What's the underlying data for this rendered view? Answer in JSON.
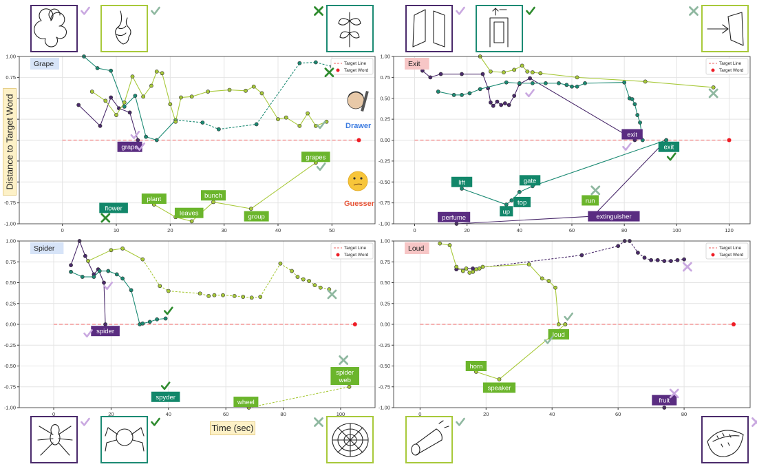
{
  "figure": {
    "ylabel": "Distance to Target Word",
    "xlabel": "Time (sec)",
    "roles": {
      "drawer": "Drawer",
      "guesser": "Guesser"
    },
    "colors": {
      "dark_purple": "#4a2a6b",
      "teal": "#1b8a73",
      "lime": "#a8c93a",
      "label_purple": "#5a2d81",
      "label_teal": "#12876a",
      "label_green": "#6bb52c",
      "target_line": "#f08080",
      "target_word": "#ee1c25",
      "check_dark": "#2e8b2e",
      "check_light": "#8fb8a0",
      "mark_purple_light": "#c9a8e0",
      "drawer_blue": "#3b7be0",
      "guesser_red": "#e8583c"
    }
  },
  "chart_data": [
    {
      "type": "line",
      "title": "Grape",
      "xlim": [
        -8,
        58
      ],
      "ylim": [
        -1.0,
        1.0
      ],
      "xticks": [
        0,
        10,
        20,
        30,
        40,
        50
      ],
      "yticks": [
        1.0,
        0.75,
        0.5,
        0.25,
        0.0,
        -0.25,
        -0.5,
        -0.75,
        -1.0
      ],
      "legend": [
        "Target Line",
        "Target Word"
      ],
      "target_word_x": 55,
      "series": [
        {
          "color": "dark_purple",
          "dashed_after": null,
          "x": [
            3,
            7,
            9,
            10.5,
            12.5,
            14
          ],
          "y": [
            0.42,
            0.17,
            0.51,
            0.38,
            0.33,
            0.0
          ]
        },
        {
          "color": "teal",
          "dashed_after": 7,
          "x": [
            4,
            6.5,
            9,
            11.5,
            13.5,
            15.5,
            17.5,
            21,
            26,
            29,
            36,
            44,
            47,
            50
          ],
          "y": [
            1.0,
            0.86,
            0.83,
            0.4,
            0.53,
            0.04,
            0.0,
            0.24,
            0.21,
            0.13,
            0.19,
            0.92,
            0.93,
            0.88
          ]
        },
        {
          "color": "lime",
          "dashed_after": null,
          "x": [
            5.5,
            8,
            10,
            11.5,
            13,
            15,
            16.5,
            17.5,
            18.5,
            20,
            21,
            22,
            24,
            27,
            31,
            34,
            35.5,
            37,
            40,
            41.5,
            44,
            45.5,
            47,
            49
          ],
          "y": [
            0.58,
            0.47,
            0.3,
            0.45,
            0.76,
            0.52,
            0.65,
            0.82,
            0.8,
            0.43,
            0.22,
            0.51,
            0.52,
            0.58,
            0.6,
            0.59,
            0.64,
            0.56,
            0.25,
            0.27,
            0.17,
            0.32,
            0.17,
            0.22
          ]
        },
        {
          "color": "lime",
          "dashed_after": null,
          "x": [
            17,
            21,
            24,
            28,
            35,
            47
          ],
          "y": [
            -0.77,
            -0.92,
            -0.97,
            -0.74,
            -0.82,
            -0.27
          ]
        }
      ],
      "annotations": [
        {
          "text": "grape",
          "x": 12.5,
          "y": -0.08,
          "color": "label_purple"
        },
        {
          "text": "flower",
          "x": 9.5,
          "y": -0.81,
          "color": "label_teal"
        },
        {
          "text": "plant",
          "x": 17,
          "y": -0.7,
          "color": "label_green"
        },
        {
          "text": "leaves",
          "x": 23.5,
          "y": -0.87,
          "color": "label_green"
        },
        {
          "text": "bunch",
          "x": 28,
          "y": -0.66,
          "color": "label_green"
        },
        {
          "text": "group",
          "x": 36,
          "y": -0.91,
          "color": "label_green"
        },
        {
          "text": "grapes",
          "x": 47,
          "y": -0.2,
          "color": "label_green"
        }
      ],
      "marks": [
        {
          "kind": "x",
          "color": "check_dark",
          "x": 49.5,
          "y": 0.81
        },
        {
          "kind": "check",
          "color": "check_light",
          "x": 48,
          "y": 0.18
        },
        {
          "kind": "check",
          "color": "mark_purple_light",
          "x": 13.5,
          "y": 0.06
        },
        {
          "kind": "check",
          "color": "mark_purple_light",
          "x": 14.5,
          "y": -0.08
        },
        {
          "kind": "x",
          "color": "check_dark",
          "x": 8,
          "y": -0.93
        },
        {
          "kind": "check",
          "color": "check_light",
          "x": 48,
          "y": -0.32
        }
      ]
    },
    {
      "type": "line",
      "title": "Exit",
      "xlim": [
        -8,
        128
      ],
      "ylim": [
        -1.0,
        1.0
      ],
      "xticks": [
        0,
        20,
        40,
        60,
        80,
        100,
        120
      ],
      "yticks": [
        1.0,
        0.75,
        0.5,
        0.25,
        0.0,
        -0.25,
        -0.5,
        -0.75,
        -1.0
      ],
      "legend": [
        "Target Line",
        "Target Word"
      ],
      "target_word_x": 120,
      "series": [
        {
          "color": "dark_purple",
          "dashed_after": null,
          "x": [
            3,
            6,
            10,
            18,
            26,
            28,
            29,
            30,
            31.5,
            33,
            34.5,
            36,
            38,
            40,
            44,
            84
          ],
          "y": [
            0.83,
            0.75,
            0.79,
            0.79,
            0.79,
            0.62,
            0.45,
            0.41,
            0.46,
            0.42,
            0.44,
            0.42,
            0.53,
            0.67,
            0.74,
            0.0
          ]
        },
        {
          "color": "teal",
          "dashed_after": null,
          "x": [
            9,
            15,
            18,
            21,
            25,
            35,
            40,
            45,
            50,
            55,
            58,
            60,
            62,
            65,
            80,
            82,
            83,
            84,
            85,
            86,
            87
          ],
          "y": [
            0.58,
            0.54,
            0.54,
            0.56,
            0.61,
            0.69,
            0.68,
            0.68,
            0.68,
            0.68,
            0.66,
            0.64,
            0.64,
            0.68,
            0.69,
            0.5,
            0.49,
            0.43,
            0.3,
            0.21,
            0.0
          ]
        },
        {
          "color": "lime",
          "dashed_after": null,
          "x": [
            25,
            29,
            34,
            38,
            41,
            43,
            45,
            48,
            62,
            88,
            114
          ],
          "y": [
            1.0,
            0.82,
            0.81,
            0.84,
            0.89,
            0.82,
            0.81,
            0.8,
            0.75,
            0.7,
            0.63
          ]
        },
        {
          "color": "dark_purple",
          "dashed_after": null,
          "x": [
            16,
            68,
            96
          ],
          "y": [
            -1.0,
            -0.91,
            0.0
          ]
        },
        {
          "color": "teal",
          "dashed_after": null,
          "x": [
            18,
            35,
            37,
            40,
            45,
            96
          ],
          "y": [
            -0.58,
            -0.77,
            -0.72,
            -0.62,
            -0.55,
            0.0
          ]
        }
      ],
      "annotations": [
        {
          "text": "exit",
          "x": 83,
          "y": 0.07,
          "color": "label_purple"
        },
        {
          "text": "exit",
          "x": 97,
          "y": -0.08,
          "color": "label_teal"
        },
        {
          "text": "lift",
          "x": 18,
          "y": -0.5,
          "color": "label_teal"
        },
        {
          "text": "gate",
          "x": 44,
          "y": -0.48,
          "color": "label_teal"
        },
        {
          "text": "top",
          "x": 41,
          "y": -0.74,
          "color": "label_teal"
        },
        {
          "text": "up",
          "x": 35,
          "y": -0.85,
          "color": "label_teal"
        },
        {
          "text": "run",
          "x": 67,
          "y": -0.72,
          "color": "label_green"
        },
        {
          "text": "perfume",
          "x": 15,
          "y": -0.92,
          "color": "label_purple"
        },
        {
          "text": "extinguisher",
          "x": 76,
          "y": -0.91,
          "color": "label_purple"
        }
      ],
      "marks": [
        {
          "kind": "x",
          "color": "check_light",
          "x": 114,
          "y": 0.56
        },
        {
          "kind": "check",
          "color": "mark_purple_light",
          "x": 44,
          "y": 0.56
        },
        {
          "kind": "check",
          "color": "mark_purple_light",
          "x": 81,
          "y": -0.08
        },
        {
          "kind": "check",
          "color": "check_dark",
          "x": 98,
          "y": -0.2
        },
        {
          "kind": "x",
          "color": "check_light",
          "x": 69,
          "y": -0.6
        }
      ]
    },
    {
      "type": "line",
      "title": "Spider",
      "xlim": [
        -12,
        112
      ],
      "ylim": [
        -1.0,
        1.0
      ],
      "xticks": [
        0,
        20,
        40,
        60,
        80,
        100
      ],
      "yticks": [
        1.0,
        0.75,
        0.5,
        0.25,
        0.0,
        -0.25,
        -0.5,
        -0.75,
        -1.0
      ],
      "legend": [
        "Target Line",
        "Target Word"
      ],
      "target_word_x": 105,
      "series": [
        {
          "color": "dark_purple",
          "dashed_after": null,
          "x": [
            6,
            9,
            11,
            14,
            15.5,
            17.5,
            18
          ],
          "y": [
            0.71,
            1.0,
            0.82,
            0.6,
            0.66,
            0.5,
            0.0
          ]
        },
        {
          "color": "teal",
          "dashed_after": null,
          "x": [
            6,
            10,
            14,
            16,
            19,
            22,
            24,
            27,
            30,
            31,
            33.5,
            36,
            39
          ],
          "y": [
            0.63,
            0.57,
            0.57,
            0.64,
            0.64,
            0.6,
            0.55,
            0.41,
            0.0,
            0.01,
            0.03,
            0.06,
            0.07
          ]
        },
        {
          "color": "lime",
          "dashed_after": 3,
          "x": [
            12,
            20,
            24,
            31,
            37,
            40,
            51,
            54,
            56,
            59,
            63,
            66,
            69,
            72,
            79,
            83,
            85,
            87,
            89,
            91,
            93,
            96
          ],
          "y": [
            0.76,
            0.89,
            0.91,
            0.78,
            0.46,
            0.4,
            0.37,
            0.34,
            0.35,
            0.35,
            0.34,
            0.33,
            0.32,
            0.33,
            0.73,
            0.64,
            0.57,
            0.54,
            0.52,
            0.47,
            0.44,
            0.42
          ]
        },
        {
          "color": "lime",
          "dashed_after": 0,
          "x": [
            68,
            103
          ],
          "y": [
            -1.0,
            -0.75
          ]
        }
      ],
      "annotations": [
        {
          "text": "spider",
          "x": 18,
          "y": -0.08,
          "color": "label_purple"
        },
        {
          "text": "spyder",
          "x": 39,
          "y": -0.87,
          "color": "label_teal"
        },
        {
          "text": "wheel",
          "x": 67,
          "y": -0.93,
          "color": "label_green"
        },
        {
          "text": "spider web",
          "x": 101.5,
          "y": -0.62,
          "color": "label_green"
        }
      ],
      "marks": [
        {
          "kind": "check",
          "color": "mark_purple_light",
          "x": 19,
          "y": 0.46
        },
        {
          "kind": "check",
          "color": "check_dark",
          "x": 40,
          "y": 0.16
        },
        {
          "kind": "x",
          "color": "check_light",
          "x": 97,
          "y": 0.36
        },
        {
          "kind": "check",
          "color": "mark_purple_light",
          "x": 12,
          "y": -0.11
        },
        {
          "kind": "check",
          "color": "check_dark",
          "x": 39,
          "y": -0.74
        },
        {
          "kind": "x",
          "color": "check_light",
          "x": 101,
          "y": -0.43
        }
      ]
    },
    {
      "type": "line",
      "title": "Loud",
      "xlim": [
        -8,
        100
      ],
      "ylim": [
        -1.0,
        1.0
      ],
      "xticks": [
        0,
        20,
        40,
        60,
        80
      ],
      "yticks": [
        1.0,
        0.75,
        0.5,
        0.25,
        0.0,
        -0.25,
        -0.5,
        -0.75,
        -1.0
      ],
      "legend": [
        "Target Line",
        "Target Word"
      ],
      "target_word_x": 95,
      "series": [
        {
          "color": "dark_purple",
          "dashed_after": 1,
          "x": [
            11,
            16,
            49,
            60,
            62,
            63.5,
            66,
            68,
            70,
            72,
            74,
            76,
            78,
            80
          ],
          "y": [
            0.66,
            0.67,
            0.83,
            0.94,
            1.0,
            1.0,
            0.86,
            0.8,
            0.77,
            0.77,
            0.76,
            0.76,
            0.77,
            0.78
          ]
        },
        {
          "color": "lime",
          "dashed_after": null,
          "x": [
            6,
            9,
            11,
            13,
            14,
            15,
            16,
            17,
            18,
            19,
            33,
            37,
            39,
            41,
            42,
            44
          ],
          "y": [
            0.97,
            0.95,
            0.69,
            0.64,
            0.67,
            0.62,
            0.63,
            0.66,
            0.67,
            0.69,
            0.72,
            0.55,
            0.52,
            0.44,
            0.0,
            0.0
          ]
        },
        {
          "color": "lime",
          "dashed_after": null,
          "x": [
            17,
            24,
            44
          ],
          "y": [
            -0.57,
            -0.66,
            0.0
          ]
        },
        {
          "color": "dark_purple",
          "dashed_after": null,
          "x": [
            74
          ],
          "y": [
            -1.0
          ]
        }
      ],
      "annotations": [
        {
          "text": "loud",
          "x": 42,
          "y": -0.12,
          "color": "label_green"
        },
        {
          "text": "horn",
          "x": 17,
          "y": -0.5,
          "color": "label_green"
        },
        {
          "text": "speaker",
          "x": 24,
          "y": -0.76,
          "color": "label_green"
        },
        {
          "text": "fruit",
          "x": 74,
          "y": -0.91,
          "color": "label_purple"
        }
      ],
      "marks": [
        {
          "kind": "check",
          "color": "check_light",
          "x": 45,
          "y": 0.09
        },
        {
          "kind": "check",
          "color": "check_light",
          "x": 39,
          "y": -0.19
        },
        {
          "kind": "x",
          "color": "mark_purple_light",
          "x": 81,
          "y": 0.69
        },
        {
          "kind": "x",
          "color": "mark_purple_light",
          "x": 77,
          "y": -0.83
        }
      ]
    }
  ],
  "sketches": [
    {
      "name": "sketch-grape-purple",
      "color": "dark_purple",
      "icon": "grape-sketch",
      "mark": "check",
      "mark_color": "mark_purple_light"
    },
    {
      "name": "sketch-grape-green",
      "color": "lime",
      "icon": "grape-bunch-sketch",
      "mark": "check",
      "mark_color": "check_light"
    },
    {
      "name": "sketch-grape-teal",
      "color": "teal",
      "icon": "plant-sketch",
      "mark": "x",
      "mark_color": "check_dark"
    },
    {
      "name": "sketch-exit-purple",
      "color": "dark_purple",
      "icon": "door-sketch",
      "mark": "check",
      "mark_color": "mark_purple_light"
    },
    {
      "name": "sketch-exit-teal",
      "color": "teal",
      "icon": "exit-door-sketch",
      "mark": "check",
      "mark_color": "check_dark"
    },
    {
      "name": "sketch-exit-green",
      "color": "lime",
      "icon": "arrow-sketch",
      "mark": "x",
      "mark_color": "check_light"
    },
    {
      "name": "sketch-spider-purple",
      "color": "dark_purple",
      "icon": "spider-sketch",
      "mark": "check",
      "mark_color": "mark_purple_light"
    },
    {
      "name": "sketch-spider-teal",
      "color": "teal",
      "icon": "spider-sketch-2",
      "mark": "check",
      "mark_color": "check_dark"
    },
    {
      "name": "sketch-spider-green",
      "color": "lime",
      "icon": "spider-web-sketch",
      "mark": "x",
      "mark_color": "check_light"
    },
    {
      "name": "sketch-loud-green",
      "color": "lime",
      "icon": "horn-sketch",
      "mark": "check",
      "mark_color": "check_light"
    },
    {
      "name": "sketch-loud-purple",
      "color": "dark_purple",
      "icon": "fruit-sketch",
      "mark": "x",
      "mark_color": "mark_purple_light"
    }
  ]
}
